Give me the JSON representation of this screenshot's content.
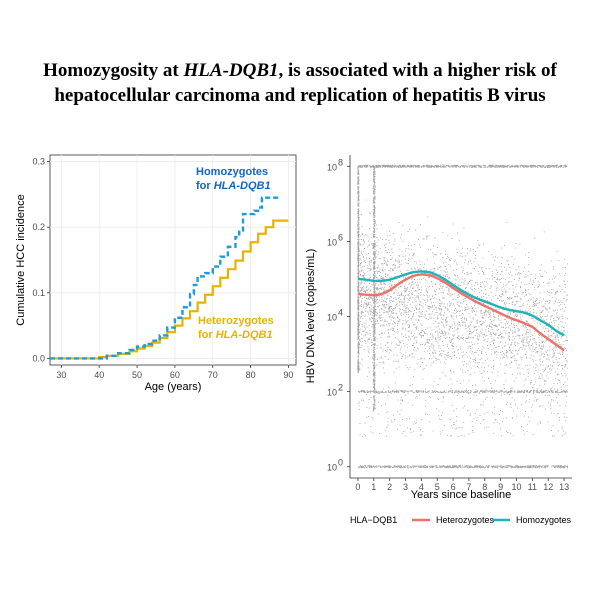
{
  "title": {
    "line1_pre": "Homozygosity at ",
    "line1_gene": "HLA-DQB1",
    "line1_post": ", is associated with a higher risk of",
    "line2": "hepatocellular carcinoma and replication of hepatitis B virus"
  },
  "colors": {
    "homozygote_left": "#1f9bd8",
    "homozygote_text": "#1565c0",
    "heterozygote_left": "#e6b400",
    "heterozygote_right": "#f0706a",
    "homozygote_right": "#1fb3b8",
    "scatter": "#555555"
  },
  "chart_data": [
    {
      "type": "line",
      "xlabel": "Age (years)",
      "ylabel": "Cumulative HCC incidence",
      "xlim": [
        27,
        92
      ],
      "ylim": [
        -0.01,
        0.31
      ],
      "xticks": [
        30,
        40,
        50,
        60,
        70,
        80,
        90
      ],
      "yticks": [
        0.0,
        0.1,
        0.2,
        0.3
      ],
      "ytick_labels": [
        "0.0",
        "0.1",
        "0.2",
        "0.3"
      ],
      "grid": true,
      "series": [
        {
          "name": "Homozygotes for HLA-DQB1",
          "label_text": "Homozygotes",
          "label_sub": "for ",
          "label_gene": "HLA-DQB1",
          "style": "dashed",
          "x": [
            27,
            40,
            42,
            45,
            48,
            50,
            52,
            54,
            56,
            58,
            60,
            62,
            64,
            65,
            66,
            68,
            70,
            72,
            74,
            76,
            77,
            78,
            80,
            81,
            82,
            83,
            85,
            88
          ],
          "y": [
            0,
            0,
            0.004,
            0.008,
            0.013,
            0.018,
            0.022,
            0.027,
            0.035,
            0.047,
            0.062,
            0.078,
            0.098,
            0.112,
            0.125,
            0.13,
            0.14,
            0.155,
            0.17,
            0.185,
            0.195,
            0.22,
            0.22,
            0.225,
            0.23,
            0.245,
            0.245,
            0.245
          ]
        },
        {
          "name": "Heterozygotes for HLA-DQB1",
          "label_text": "Heterozygotes",
          "label_sub": "for ",
          "label_gene": "HLA-DQB1",
          "style": "solid",
          "x": [
            27,
            38,
            40,
            42,
            45,
            48,
            50,
            52,
            54,
            56,
            58,
            60,
            62,
            64,
            66,
            68,
            70,
            72,
            74,
            76,
            78,
            80,
            82,
            84,
            86,
            90
          ],
          "y": [
            0,
            0,
            0.002,
            0.004,
            0.007,
            0.011,
            0.015,
            0.019,
            0.024,
            0.031,
            0.04,
            0.05,
            0.061,
            0.072,
            0.085,
            0.097,
            0.11,
            0.123,
            0.136,
            0.149,
            0.163,
            0.177,
            0.19,
            0.2,
            0.21,
            0.21
          ]
        }
      ]
    },
    {
      "type": "scatter",
      "xlabel": "Years since baseline",
      "ylabel": "HBV DNA level (copies/mL)",
      "y_scale": "log10",
      "xlim": [
        -0.5,
        13.5
      ],
      "ylim_log10": [
        -0.3,
        8.3
      ],
      "xticks": [
        0,
        1,
        2,
        3,
        4,
        5,
        6,
        7,
        8,
        9,
        10,
        11,
        12,
        13
      ],
      "ytick_labels": [
        "10",
        "10",
        "10",
        "10",
        "10"
      ],
      "ytick_exponents": [
        "0",
        "2",
        "4",
        "6",
        "8"
      ],
      "ytick_log_values": [
        0,
        2,
        4,
        6,
        8
      ],
      "legend": {
        "title": "HLA−DQB1",
        "placement": "bottom",
        "entries": [
          "Heterozygotes",
          "Homozygotes"
        ]
      },
      "series": [
        {
          "name": "Heterozygotes",
          "x": [
            0,
            0.5,
            1,
            1.5,
            2,
            2.5,
            3,
            3.5,
            4,
            4.5,
            5,
            5.5,
            6,
            6.5,
            7,
            7.5,
            8,
            8.5,
            9,
            9.5,
            10,
            10.5,
            11,
            11.5,
            12,
            12.5,
            13
          ],
          "y_log10": [
            4.6,
            4.58,
            4.57,
            4.6,
            4.7,
            4.85,
            4.98,
            5.08,
            5.12,
            5.1,
            5.02,
            4.9,
            4.76,
            4.62,
            4.5,
            4.38,
            4.28,
            4.18,
            4.08,
            3.98,
            3.9,
            3.82,
            3.72,
            3.55,
            3.4,
            3.25,
            3.1
          ]
        },
        {
          "name": "Homozygotes",
          "x": [
            0,
            0.5,
            1,
            1.5,
            2,
            2.5,
            3,
            3.5,
            4,
            4.5,
            5,
            5.5,
            6,
            6.5,
            7,
            7.5,
            8,
            8.5,
            9,
            9.5,
            10,
            10.5,
            11,
            11.5,
            12,
            12.5,
            13
          ],
          "y_log10": [
            5.0,
            4.98,
            4.95,
            4.95,
            4.98,
            5.05,
            5.12,
            5.18,
            5.2,
            5.18,
            5.1,
            4.98,
            4.84,
            4.7,
            4.58,
            4.48,
            4.4,
            4.32,
            4.24,
            4.18,
            4.14,
            4.1,
            4.02,
            3.9,
            3.78,
            3.62,
            3.5
          ]
        }
      ]
    }
  ]
}
